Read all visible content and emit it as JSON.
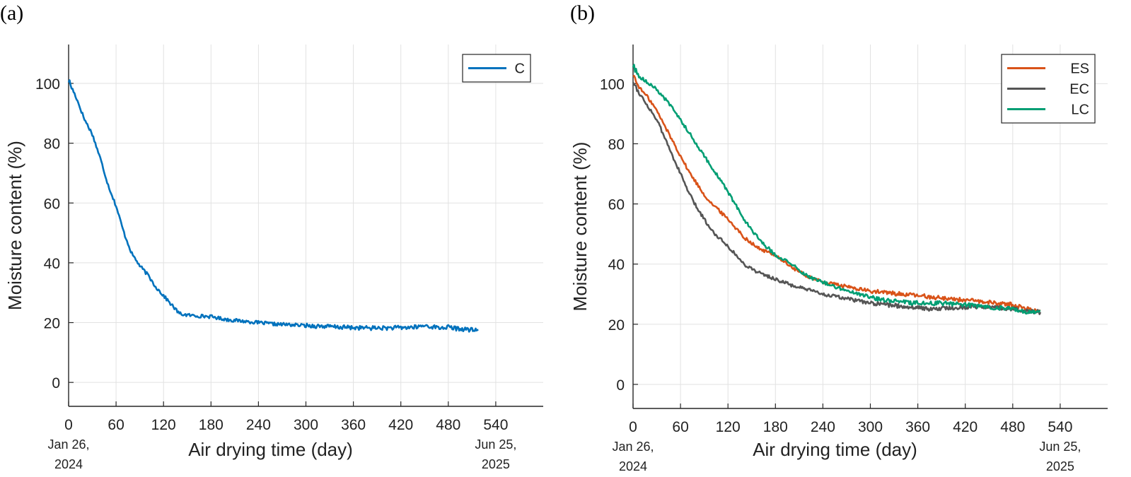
{
  "chart_data": [
    {
      "type": "line",
      "panel_label": "(a)",
      "xlabel": "Air drying time (day)",
      "ylabel": "Moisture content (%)",
      "xlim": [
        0,
        600
      ],
      "ylim": [
        -8,
        113
      ],
      "xticks": [
        0,
        60,
        120,
        180,
        240,
        300,
        360,
        420,
        480,
        540
      ],
      "yticks": [
        0,
        20,
        40,
        60,
        80,
        100
      ],
      "grid": true,
      "legend_position": "top-right",
      "date_labels": [
        {
          "x": 0,
          "line1": "Jan 26,",
          "line2": "2024"
        },
        {
          "x": 540,
          "line1": "Jun 25,",
          "line2": "2025"
        }
      ],
      "series": [
        {
          "name": "C",
          "color": "#0072BD",
          "x": [
            0,
            5,
            10,
            20,
            30,
            40,
            50,
            60,
            70,
            80,
            90,
            100,
            110,
            120,
            130,
            140,
            150,
            160,
            180,
            200,
            220,
            240,
            260,
            280,
            300,
            320,
            340,
            360,
            380,
            400,
            420,
            440,
            450,
            460,
            470,
            480,
            490,
            500,
            510,
            518
          ],
          "y": [
            101,
            98,
            95,
            88,
            83,
            75,
            66,
            59,
            50,
            43,
            39,
            36,
            32,
            29,
            26,
            23,
            22.5,
            22.3,
            22,
            21,
            20.5,
            20,
            19.5,
            19.3,
            19,
            18.8,
            18.5,
            18.3,
            18.2,
            18.2,
            18.3,
            18.5,
            19,
            18.6,
            18.2,
            18.5,
            18,
            17.8,
            17.5,
            17.6
          ]
        }
      ]
    },
    {
      "type": "line",
      "panel_label": "(b)",
      "xlabel": "Air drying time (day)",
      "ylabel": "Moisture content (%)",
      "xlim": [
        0,
        600
      ],
      "ylim": [
        -8,
        113
      ],
      "xticks": [
        0,
        60,
        120,
        180,
        240,
        300,
        360,
        420,
        480,
        540
      ],
      "yticks": [
        0,
        20,
        40,
        60,
        80,
        100
      ],
      "grid": true,
      "legend_position": "top-right",
      "date_labels": [
        {
          "x": 0,
          "line1": "Jan 26,",
          "line2": "2024"
        },
        {
          "x": 540,
          "line1": "Jun 25,",
          "line2": "2025"
        }
      ],
      "series": [
        {
          "name": "ES",
          "color": "#D95319",
          "x": [
            0,
            5,
            10,
            20,
            30,
            40,
            50,
            60,
            70,
            80,
            90,
            100,
            120,
            140,
            160,
            180,
            200,
            220,
            240,
            260,
            280,
            300,
            320,
            340,
            360,
            380,
            400,
            420,
            440,
            460,
            480,
            500,
            515
          ],
          "y": [
            103,
            100,
            98,
            95,
            91,
            86,
            81,
            76,
            71,
            67,
            63,
            60,
            55,
            49,
            45,
            43,
            39,
            36,
            34,
            33,
            32,
            31,
            30.5,
            30,
            29.5,
            29,
            28.5,
            28,
            27.5,
            27,
            26.5,
            25,
            24.5
          ]
        },
        {
          "name": "EC",
          "color": "#555555",
          "x": [
            0,
            5,
            10,
            20,
            30,
            40,
            50,
            60,
            70,
            80,
            90,
            100,
            120,
            140,
            160,
            180,
            200,
            220,
            240,
            260,
            280,
            300,
            320,
            340,
            360,
            380,
            400,
            420,
            440,
            460,
            480,
            500,
            515
          ],
          "y": [
            101,
            98,
            96,
            92,
            88,
            82,
            76,
            70,
            64,
            59,
            55,
            51,
            46,
            40,
            37,
            35,
            33,
            31.5,
            30,
            29,
            28,
            27,
            26.5,
            26,
            25.5,
            25,
            25.5,
            25.7,
            26,
            25.5,
            25,
            24.5,
            24
          ]
        },
        {
          "name": "LC",
          "color": "#009E73",
          "x": [
            0,
            5,
            10,
            20,
            30,
            40,
            50,
            60,
            70,
            80,
            90,
            100,
            120,
            140,
            160,
            180,
            200,
            220,
            240,
            260,
            280,
            300,
            320,
            340,
            360,
            380,
            400,
            420,
            440,
            460,
            480,
            500,
            515
          ],
          "y": [
            106,
            103,
            102,
            100,
            98,
            95,
            92,
            88,
            84,
            80,
            76,
            72,
            64,
            55,
            48,
            43,
            40,
            36,
            34,
            32,
            30.5,
            29,
            28,
            27.5,
            27,
            27,
            27,
            26.5,
            26,
            25.5,
            25,
            24,
            24.5
          ]
        }
      ]
    }
  ]
}
